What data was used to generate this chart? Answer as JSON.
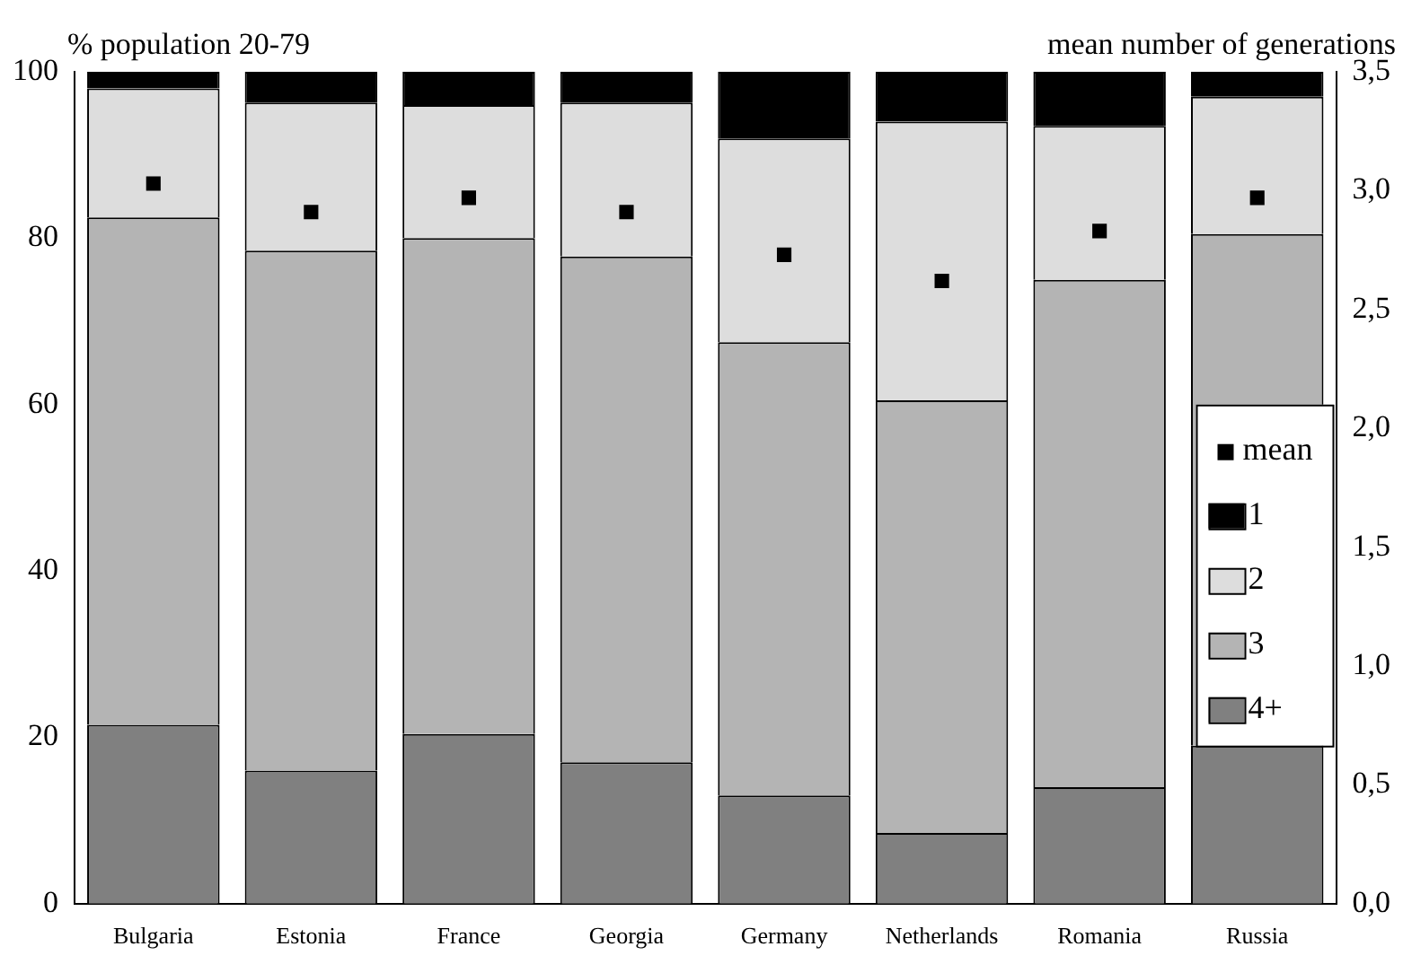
{
  "chart_data": {
    "type": "bar",
    "stacked": true,
    "ylabel": "% population 20-79",
    "y2label": "mean number of generations",
    "categories": [
      "Bulgaria",
      "Estonia",
      "France",
      "Georgia",
      "Germany",
      "Netherlands",
      "Romania",
      "Russia"
    ],
    "series": [
      {
        "name": "4+",
        "color": "#808080",
        "values": [
          21.5,
          16,
          20.4,
          17,
          13,
          8.5,
          14,
          19
        ]
      },
      {
        "name": "3",
        "color": "#b4b4b4",
        "values": [
          61,
          62.5,
          59.6,
          60.8,
          54.5,
          52,
          61,
          61.5
        ]
      },
      {
        "name": "2",
        "color": "#dddddd",
        "values": [
          15.5,
          17.8,
          16,
          18.5,
          24.5,
          33.5,
          18.5,
          16.5
        ]
      },
      {
        "name": "1",
        "color": "#000000",
        "values": [
          2,
          3.7,
          4,
          3.7,
          8,
          6,
          6.5,
          3
        ]
      },
      {
        "name": "mean",
        "type": "scatter",
        "axis": "y2",
        "color": "#000000",
        "marker": "square",
        "values": [
          3.03,
          2.91,
          2.97,
          2.91,
          2.73,
          2.62,
          2.83,
          2.97
        ]
      }
    ],
    "ylim": [
      0,
      100
    ],
    "yticks": [
      0,
      20,
      40,
      60,
      80,
      100
    ],
    "y2lim": [
      0,
      3.5
    ],
    "y2ticks": [
      {
        "value": 0,
        "label": "0,0"
      },
      {
        "value": 0.5,
        "label": "0,5"
      },
      {
        "value": 1,
        "label": "1,0"
      },
      {
        "value": 1.5,
        "label": "1,5"
      },
      {
        "value": 2,
        "label": "2,0"
      },
      {
        "value": 2.5,
        "label": "2,5"
      },
      {
        "value": 3,
        "label": "3,0"
      },
      {
        "value": 3.5,
        "label": "3,5"
      }
    ],
    "grid": false,
    "legend": "right"
  }
}
